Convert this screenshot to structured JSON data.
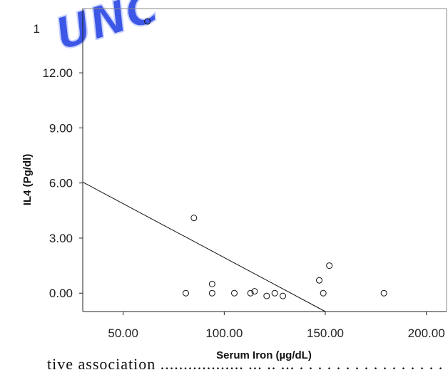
{
  "watermark": "UNC",
  "cutoff_text": "tive association .................. ... .. ... . . . . . . . . . . . . . . . . . .. . .. b e t w",
  "chart_data": {
    "type": "scatter",
    "xlabel": "Serum Iron (µg/dL)",
    "ylabel": "IL4 (Pg/dl)",
    "xlim": [
      30,
      210
    ],
    "ylim": [
      -1,
      15.5
    ],
    "x_ticks": [
      50,
      100,
      150,
      200
    ],
    "x_tick_labels": [
      "50.00",
      "100.00",
      "150.00",
      "200.00"
    ],
    "y_ticks": [
      0,
      3,
      6,
      9,
      12
    ],
    "y_tick_labels": [
      "0.00",
      "3.00",
      "6.00",
      "9.00",
      "12.00"
    ],
    "partial_top_label": "1",
    "grid": false,
    "points": [
      {
        "x": 62,
        "y": 14.8
      },
      {
        "x": 81,
        "y": 0
      },
      {
        "x": 85,
        "y": 4.1
      },
      {
        "x": 94,
        "y": 0.5
      },
      {
        "x": 94,
        "y": 0
      },
      {
        "x": 105,
        "y": 0
      },
      {
        "x": 113,
        "y": 0
      },
      {
        "x": 115,
        "y": 0.1
      },
      {
        "x": 121,
        "y": -0.15
      },
      {
        "x": 125,
        "y": 0
      },
      {
        "x": 129,
        "y": -0.15
      },
      {
        "x": 147,
        "y": 0.7
      },
      {
        "x": 149,
        "y": 0
      },
      {
        "x": 152,
        "y": 1.5
      },
      {
        "x": 179,
        "y": 0
      }
    ],
    "fit_line": {
      "x": [
        30,
        150
      ],
      "y": [
        6.05,
        -1
      ]
    }
  }
}
